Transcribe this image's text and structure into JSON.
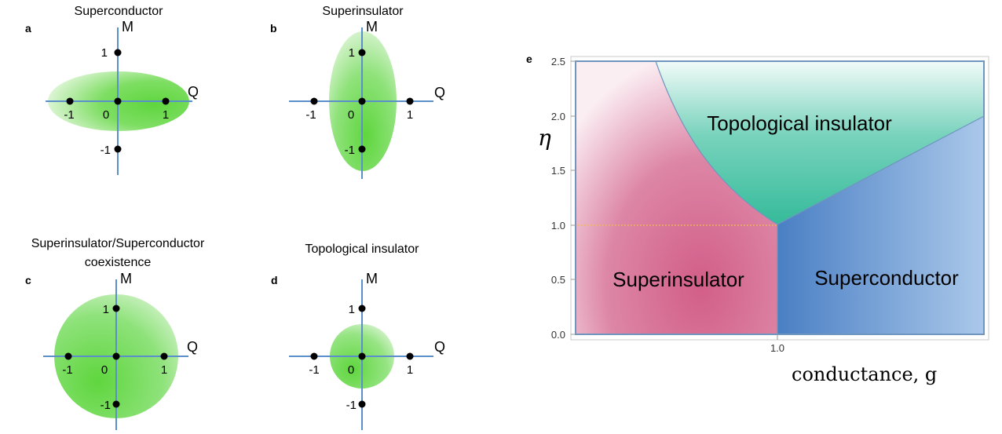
{
  "panels": [
    {
      "letter": "a",
      "title": "Superconductor",
      "axis_m": "M",
      "axis_q": "Q",
      "ticks": {
        "q_neg": "-1",
        "q_zero": "0",
        "q_pos": "1",
        "m_pos": "1",
        "m_neg": "-1"
      }
    },
    {
      "letter": "b",
      "title": "Superinsulator",
      "axis_m": "M",
      "axis_q": "Q",
      "ticks": {
        "q_neg": "-1",
        "q_zero": "0",
        "q_pos": "1",
        "m_pos": "1",
        "m_neg": "-1"
      }
    },
    {
      "letter": "c",
      "title_line1": "Superinsulator/Superconductor",
      "title_line2": "coexistence",
      "axis_m": "M",
      "axis_q": "Q",
      "ticks": {
        "q_neg": "-1",
        "q_zero": "0",
        "q_pos": "1",
        "m_pos": "1",
        "m_neg": "-1"
      }
    },
    {
      "letter": "d",
      "title": "Topological insulator",
      "axis_m": "M",
      "axis_q": "Q",
      "ticks": {
        "q_neg": "-1",
        "q_zero": "0",
        "q_pos": "1",
        "m_pos": "1",
        "m_neg": "-1"
      }
    }
  ],
  "phase_diagram": {
    "letter": "e",
    "ylabel": "η",
    "xlabel": "conductance, g",
    "yticks": [
      "0.0",
      "0.5",
      "1.0",
      "1.5",
      "2.0",
      "2.5"
    ],
    "xtick": "1.0",
    "regions": {
      "topological": "Topological insulator",
      "superinsulator": "Superinsulator",
      "superconductor": "Superconductor"
    }
  },
  "colors": {
    "axis": "#5b8fc9",
    "ellipse_green": "#5fd63e",
    "superinsulator": "#d4688e",
    "superconductor": "#4f86c6",
    "topological": "#3dbf9e",
    "frame": "#6f96bf",
    "dashed": "#f0c040"
  }
}
